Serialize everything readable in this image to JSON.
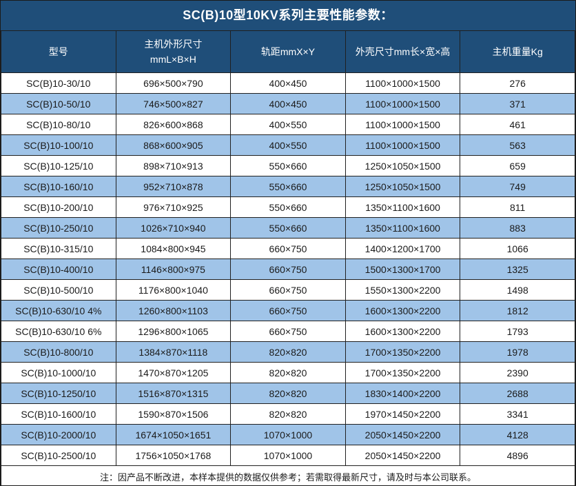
{
  "title": "SC(B)10型10KV系列主要性能参数：",
  "colors": {
    "header_navy": "#1F4E79",
    "row_alt_blue": "#A0C4E8",
    "border_dark": "#1f1f1f",
    "text_dark": "#1a1a1a",
    "header_text": "#ffffff"
  },
  "table": {
    "headers": {
      "model": "型号",
      "host_dimensions_line1": "主机外形尺寸",
      "host_dimensions_line2": "mmL×B×H",
      "rail_gauge": "轨距mmX×Y",
      "enclosure_dimensions": "外壳尺寸mm长×宽×高",
      "weight": "主机重量Kg"
    },
    "rows": [
      [
        "SC(B)10-30/10",
        "696×500×790",
        "400×450",
        "1100×1000×1500",
        "276"
      ],
      [
        "SC(B)10-50/10",
        "746×500×827",
        "400×450",
        "1100×1000×1500",
        "371"
      ],
      [
        "SC(B)10-80/10",
        "826×600×868",
        "400×550",
        "1100×1000×1500",
        "461"
      ],
      [
        "SC(B)10-100/10",
        "868×600×905",
        "400×550",
        "1100×1000×1500",
        "563"
      ],
      [
        "SC(B)10-125/10",
        "898×710×913",
        "550×660",
        "1250×1050×1500",
        "659"
      ],
      [
        "SC(B)10-160/10",
        "952×710×878",
        "550×660",
        "1250×1050×1500",
        "749"
      ],
      [
        "SC(B)10-200/10",
        "976×710×925",
        "550×660",
        "1350×1100×1600",
        "811"
      ],
      [
        "SC(B)10-250/10",
        "1026×710×940",
        "550×660",
        "1350×1100×1600",
        "883"
      ],
      [
        "SC(B)10-315/10",
        "1084×800×945",
        "660×750",
        "1400×1200×1700",
        "1066"
      ],
      [
        "SC(B)10-400/10",
        "1146×800×975",
        "660×750",
        "1500×1300×1700",
        "1325"
      ],
      [
        "SC(B)10-500/10",
        "1176×800×1040",
        "660×750",
        "1550×1300×2200",
        "1498"
      ],
      [
        "SC(B)10-630/10 4%",
        "1260×800×1103",
        "660×750",
        "1600×1300×2200",
        "1812"
      ],
      [
        "SC(B)10-630/10 6%",
        "1296×800×1065",
        "660×750",
        "1600×1300×2200",
        "1793"
      ],
      [
        "SC(B)10-800/10",
        "1384×870×1118",
        "820×820",
        "1700×1350×2200",
        "1978"
      ],
      [
        "SC(B)10-1000/10",
        "1470×870×1205",
        "820×820",
        "1700×1350×2200",
        "2390"
      ],
      [
        "SC(B)10-1250/10",
        "1516×870×1315",
        "820×820",
        "1830×1400×2200",
        "2688"
      ],
      [
        "SC(B)10-1600/10",
        "1590×870×1506",
        "820×820",
        "1970×1450×2200",
        "3341"
      ],
      [
        "SC(B)10-2000/10",
        "1674×1050×1651",
        "1070×1000",
        "2050×1450×2200",
        "4128"
      ],
      [
        "SC(B)10-2500/10",
        "1756×1050×1768",
        "1070×1000",
        "2050×1450×2200",
        "4896"
      ]
    ]
  },
  "note": "注：因产品不断改进，本样本提供的数据仅供参考；若需取得最新尺寸，请及时与本公司联系。"
}
